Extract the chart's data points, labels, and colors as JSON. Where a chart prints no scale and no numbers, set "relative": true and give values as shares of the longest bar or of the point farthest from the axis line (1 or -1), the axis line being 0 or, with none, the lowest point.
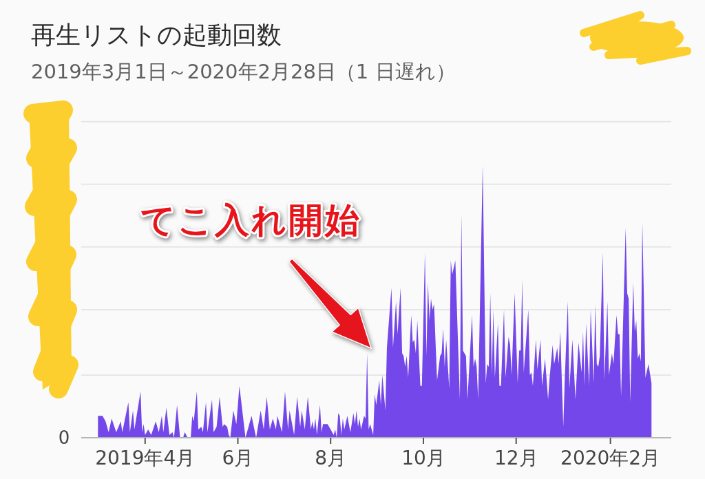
{
  "chart_data": {
    "type": "area",
    "title": "再生リストの起動回数",
    "subtitle": "2019年3月1日～2020年2月28日（1 日遅れ）",
    "relative": true,
    "color": "#7347e9",
    "xlim": [
      "2019-02-18",
      "2020-03-12"
    ],
    "xticks": [
      {
        "value": "2019-04-01",
        "label": "2019年4月"
      },
      {
        "value": "2019-06-01",
        "label": "6月"
      },
      {
        "value": "2019-08-01",
        "label": "8月"
      },
      {
        "value": "2019-10-01",
        "label": "10月"
      },
      {
        "value": "2019-12-01",
        "label": "12月"
      },
      {
        "value": "2020-02-01",
        "label": "2020年2月"
      }
    ],
    "ref_lines": [
      {
        "axis": "y",
        "value": 0.23,
        "color": "#e6e6e6"
      },
      {
        "axis": "y",
        "value": 0.47,
        "color": "#e6e6e6"
      },
      {
        "axis": "y",
        "value": 0.7,
        "color": "#e6e6e6"
      },
      {
        "axis": "y",
        "value": 0.93,
        "color": "#e6e6e6"
      },
      {
        "axis": "y",
        "value": 1.16,
        "color": "#e6e6e6"
      }
    ],
    "annotations": [
      "0",
      "てこ入れ開始"
    ],
    "x": [
      "2019-03-01",
      "2019-03-04",
      "2019-03-06",
      "2019-03-08",
      "2019-03-10",
      "2019-03-13",
      "2019-03-16",
      "2019-03-17",
      "2019-03-21",
      "2019-03-22",
      "2019-03-24",
      "2019-03-25",
      "2019-03-29",
      "2019-03-30",
      "2019-03-31",
      "2019-04-01",
      "2019-04-03",
      "2019-04-05",
      "2019-04-08",
      "2019-04-10",
      "2019-04-12",
      "2019-04-13",
      "2019-04-15",
      "2019-04-17",
      "2019-04-19",
      "2019-04-20",
      "2019-04-22",
      "2019-04-24",
      "2019-04-26",
      "2019-04-27",
      "2019-04-29",
      "2019-05-01",
      "2019-05-02",
      "2019-05-03",
      "2019-05-05",
      "2019-05-06",
      "2019-05-08",
      "2019-05-09",
      "2019-05-11",
      "2019-05-12",
      "2019-05-15",
      "2019-05-16",
      "2019-05-18",
      "2019-05-20",
      "2019-05-22",
      "2019-05-23",
      "2019-05-25",
      "2019-05-26",
      "2019-05-27",
      "2019-05-29",
      "2019-05-31",
      "2019-06-02",
      "2019-06-06",
      "2019-06-08",
      "2019-06-10",
      "2019-06-13",
      "2019-06-16",
      "2019-06-18",
      "2019-06-20",
      "2019-06-22",
      "2019-06-24",
      "2019-06-26",
      "2019-06-27",
      "2019-06-30",
      "2019-07-02",
      "2019-07-04",
      "2019-07-05",
      "2019-07-08",
      "2019-07-10",
      "2019-07-12",
      "2019-07-13",
      "2019-07-15",
      "2019-07-17",
      "2019-07-19",
      "2019-07-20",
      "2019-07-21",
      "2019-07-22",
      "2019-07-23",
      "2019-07-25",
      "2019-07-26",
      "2019-07-27",
      "2019-07-29",
      "2019-07-30",
      "2019-08-01",
      "2019-08-03",
      "2019-08-04",
      "2019-08-05",
      "2019-08-06",
      "2019-08-07",
      "2019-08-08",
      "2019-08-09",
      "2019-08-10",
      "2019-08-12",
      "2019-08-14",
      "2019-08-16",
      "2019-08-17",
      "2019-08-18",
      "2019-08-19",
      "2019-08-20",
      "2019-08-21",
      "2019-08-23",
      "2019-08-24",
      "2019-08-25",
      "2019-08-26",
      "2019-08-27",
      "2019-08-29",
      "2019-08-30",
      "2019-08-31",
      "2019-09-02",
      "2019-09-03",
      "2019-09-04",
      "2019-09-06",
      "2019-09-07",
      "2019-09-10",
      "2019-09-11",
      "2019-09-13",
      "2019-09-14",
      "2019-09-16",
      "2019-09-17",
      "2019-09-18",
      "2019-09-19",
      "2019-09-20",
      "2019-09-21",
      "2019-09-23",
      "2019-09-24",
      "2019-09-25",
      "2019-09-26",
      "2019-09-27",
      "2019-09-29",
      "2019-09-30",
      "2019-10-02",
      "2019-10-03",
      "2019-10-04",
      "2019-10-05",
      "2019-10-06",
      "2019-10-07",
      "2019-10-08",
      "2019-10-10",
      "2019-10-12",
      "2019-10-13",
      "2019-10-14",
      "2019-10-15",
      "2019-10-16",
      "2019-10-18",
      "2019-10-19",
      "2019-10-20",
      "2019-10-22",
      "2019-10-25",
      "2019-10-26",
      "2019-10-27",
      "2019-10-29",
      "2019-10-30",
      "2019-11-02",
      "2019-11-03",
      "2019-11-04",
      "2019-11-05",
      "2019-11-06",
      "2019-11-09",
      "2019-11-11",
      "2019-11-12",
      "2019-11-13",
      "2019-11-14",
      "2019-11-15",
      "2019-11-16",
      "2019-11-17",
      "2019-11-19",
      "2019-11-20",
      "2019-11-21",
      "2019-11-23",
      "2019-11-24",
      "2019-11-26",
      "2019-11-27",
      "2019-11-28",
      "2019-11-30",
      "2019-12-02",
      "2019-12-03",
      "2019-12-04",
      "2019-12-05",
      "2019-12-06",
      "2019-12-09",
      "2019-12-10",
      "2019-12-11",
      "2019-12-12",
      "2019-12-14",
      "2019-12-15",
      "2019-12-17",
      "2019-12-18",
      "2019-12-20",
      "2019-12-22",
      "2019-12-23",
      "2019-12-25",
      "2019-12-26",
      "2019-12-28",
      "2019-12-29",
      "2019-12-30",
      "2020-01-01",
      "2020-01-02",
      "2020-01-04",
      "2020-01-05",
      "2020-01-07",
      "2020-01-09",
      "2020-01-11",
      "2020-01-13",
      "2020-01-14",
      "2020-01-15",
      "2020-01-16",
      "2020-01-18",
      "2020-01-19",
      "2020-01-21",
      "2020-01-22",
      "2020-01-23",
      "2020-01-24",
      "2020-01-25",
      "2020-01-27",
      "2020-01-28",
      "2020-01-30",
      "2020-01-31",
      "2020-02-02",
      "2020-02-03",
      "2020-02-05",
      "2020-02-06",
      "2020-02-07",
      "2020-02-08",
      "2020-02-11",
      "2020-02-12",
      "2020-02-13",
      "2020-02-14",
      "2020-02-16",
      "2020-02-17",
      "2020-02-18",
      "2020-02-19",
      "2020-02-20",
      "2020-02-21",
      "2020-02-22",
      "2020-02-24",
      "2020-02-26",
      "2020-02-28"
    ],
    "values": [
      0.08,
      0.08,
      0.06,
      0.02,
      0.07,
      0.02,
      0.06,
      0.02,
      0.13,
      0.02,
      0.1,
      0.03,
      0.17,
      0.02,
      0.05,
      0.01,
      0.03,
      0.01,
      0.06,
      0.02,
      0.08,
      0.02,
      0.11,
      0.01,
      0.02,
      0,
      0.12,
      0,
      0,
      0.02,
      0,
      0,
      0.08,
      0.06,
      0.17,
      0.03,
      0.04,
      0.02,
      0.13,
      0.02,
      0.14,
      0.02,
      0.04,
      0.15,
      0.04,
      0.05,
      0.04,
      0.01,
      0,
      0.1,
      0.05,
      0.19,
      0,
      0.04,
      0.08,
      0,
      0.1,
      0.03,
      0.15,
      0.03,
      0.07,
      0.03,
      0.08,
      0.02,
      0.17,
      0.03,
      0.1,
      0.01,
      0.15,
      0.04,
      0.1,
      0.03,
      0.15,
      0.03,
      0.06,
      0.03,
      0.07,
      0.01,
      0.12,
      0.02,
      0.05,
      0.05,
      0.05,
      0.03,
      0.01,
      0.03,
      0,
      0.09,
      0.08,
      0.01,
      0.07,
      0.03,
      0.08,
      0.02,
      0.09,
      0.05,
      0.1,
      0.04,
      0.07,
      0.03,
      0.08,
      0.07,
      0.31,
      0.03,
      0.05,
      0.01,
      0.16,
      0.12,
      0.21,
      0.12,
      0.23,
      0.1,
      0.33,
      0.55,
      0.33,
      0.5,
      0.38,
      0.55,
      0.31,
      0.3,
      0.26,
      0.3,
      0.22,
      0.45,
      0.35,
      0.36,
      0.31,
      0.43,
      0.19,
      0.19,
      0.68,
      0.3,
      0.57,
      0.43,
      0.51,
      0.47,
      0.49,
      0.21,
      0.3,
      0.31,
      0.4,
      0.26,
      0.36,
      0.18,
      0.65,
      0.6,
      0.65,
      0.14,
      0.82,
      0.32,
      0.3,
      0.14,
      0.45,
      0.26,
      0.29,
      0.26,
      0.14,
      1,
      0.2,
      0.27,
      0.26,
      0.53,
      0.23,
      0.47,
      0.22,
      0.42,
      0.19,
      0.19,
      0.47,
      0.22,
      0.37,
      0.34,
      0.23,
      0.53,
      0.2,
      0.32,
      0.32,
      0.58,
      0.24,
      0.47,
      0.23,
      0.24,
      0.19,
      0.36,
      0.25,
      0.36,
      0.19,
      0.29,
      0.14,
      0.22,
      0.34,
      0.27,
      0.33,
      0.27,
      0.39,
      0.04,
      0.22,
      0.5,
      0.18,
      0.36,
      0.14,
      0.35,
      0.24,
      0.39,
      0.19,
      0.42,
      0.19,
      0.47,
      0.2,
      0.49,
      0.27,
      0.26,
      0.3,
      0.68,
      0.21,
      0.5,
      0.23,
      0.31,
      0.27,
      0.45,
      0.38,
      0.38,
      0.15,
      0.77,
      0.53,
      0.51,
      0.13,
      0.57,
      0.39,
      0.43,
      0.29,
      0.31,
      0.28,
      0.79,
      0.22,
      0.27,
      0.2
    ]
  }
}
